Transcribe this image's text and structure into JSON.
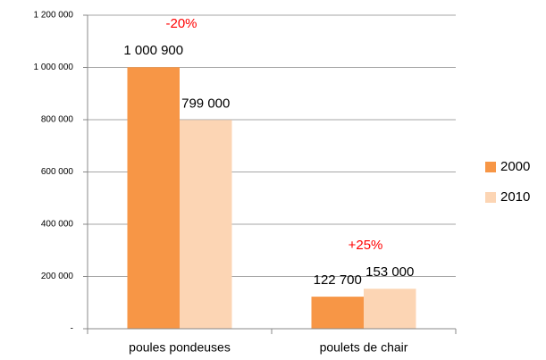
{
  "chart_data": {
    "type": "bar",
    "categories": [
      "poules pondeuses",
      "poulets de chair"
    ],
    "series": [
      {
        "name": "2000",
        "color": "#f79646",
        "values": [
          1000900,
          122700
        ],
        "value_labels": [
          "1 000 900",
          "122 700"
        ]
      },
      {
        "name": "2010",
        "color": "#fcd5b4",
        "values": [
          799000,
          153000
        ],
        "value_labels": [
          "799 000",
          "153 000"
        ]
      }
    ],
    "annotations": [
      "-20%",
      "+25%"
    ],
    "ylim": [
      0,
      1200000
    ],
    "yticks": [
      {
        "value": 0,
        "label": "-"
      },
      {
        "value": 200000,
        "label": "200 000"
      },
      {
        "value": 400000,
        "label": "400 000"
      },
      {
        "value": 600000,
        "label": "600 000"
      },
      {
        "value": 800000,
        "label": "800 000"
      },
      {
        "value": 1000000,
        "label": "1 000 000"
      },
      {
        "value": 1200000,
        "label": "1 200 000"
      }
    ],
    "grid": true,
    "legend": "right"
  }
}
